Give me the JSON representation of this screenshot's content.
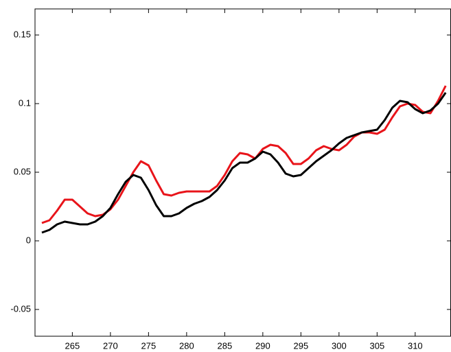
{
  "chart_data": {
    "type": "line",
    "x": [
      261,
      262,
      263,
      264,
      265,
      266,
      267,
      268,
      269,
      270,
      271,
      272,
      273,
      274,
      275,
      276,
      277,
      278,
      279,
      280,
      281,
      282,
      283,
      284,
      285,
      286,
      287,
      288,
      289,
      290,
      291,
      292,
      293,
      294,
      295,
      296,
      297,
      298,
      299,
      300,
      301,
      302,
      303,
      304,
      305,
      306,
      307,
      308,
      309,
      310,
      311,
      312,
      313,
      314
    ],
    "series": [
      {
        "color": "#e8141a",
        "values": [
          0.013,
          0.015,
          0.022,
          0.03,
          0.03,
          0.025,
          0.02,
          0.018,
          0.019,
          0.023,
          0.03,
          0.04,
          0.05,
          0.058,
          0.055,
          0.044,
          0.034,
          0.033,
          0.035,
          0.036,
          0.036,
          0.036,
          0.036,
          0.04,
          0.048,
          0.058,
          0.064,
          0.063,
          0.06,
          0.067,
          0.07,
          0.069,
          0.064,
          0.056,
          0.056,
          0.06,
          0.066,
          0.069,
          0.067,
          0.066,
          0.07,
          0.076,
          0.079,
          0.079,
          0.078,
          0.081,
          0.09,
          0.098,
          0.1,
          0.099,
          0.094,
          0.093,
          0.102,
          0.113
        ]
      },
      {
        "color": "#000000",
        "values": [
          0.006,
          0.008,
          0.012,
          0.014,
          0.013,
          0.012,
          0.012,
          0.014,
          0.018,
          0.024,
          0.034,
          0.043,
          0.048,
          0.046,
          0.037,
          0.026,
          0.018,
          0.018,
          0.02,
          0.024,
          0.027,
          0.029,
          0.032,
          0.037,
          0.044,
          0.053,
          0.057,
          0.057,
          0.06,
          0.065,
          0.063,
          0.057,
          0.049,
          0.047,
          0.048,
          0.053,
          0.058,
          0.062,
          0.066,
          0.071,
          0.075,
          0.077,
          0.079,
          0.08,
          0.081,
          0.088,
          0.097,
          0.102,
          0.101,
          0.096,
          0.093,
          0.095,
          0.1,
          0.108
        ]
      }
    ],
    "xlim": [
      260.1,
      314.7
    ],
    "xticks": [
      265,
      270,
      275,
      280,
      285,
      290,
      295,
      300,
      305,
      310
    ],
    "ylim": [
      -0.0695,
      0.169
    ],
    "yticks": [
      -0.05,
      0,
      0.05,
      0.1,
      0.15
    ],
    "grid": false
  }
}
